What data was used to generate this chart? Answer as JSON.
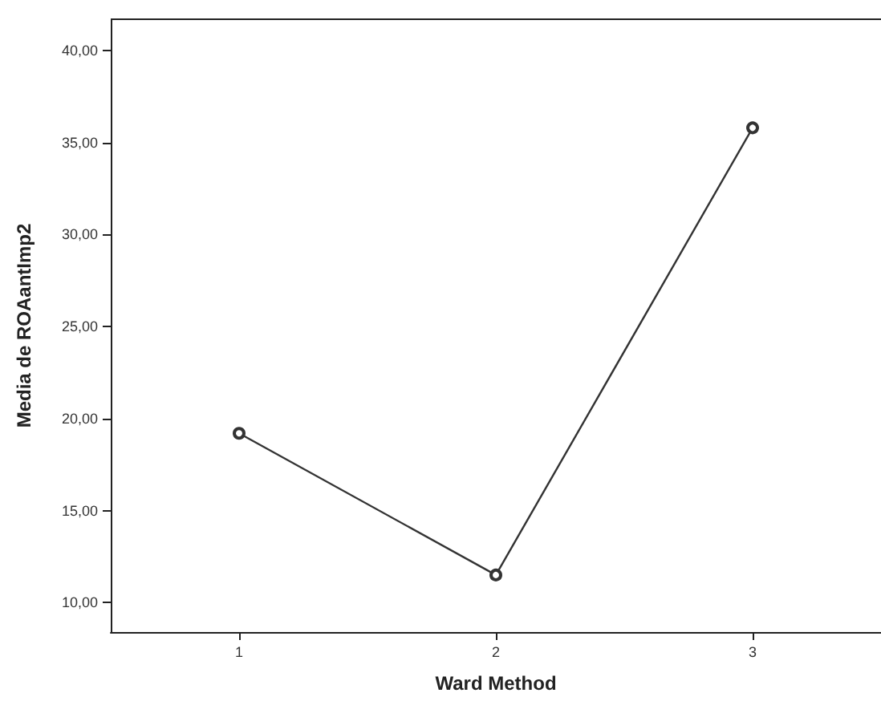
{
  "chart_data": {
    "type": "line",
    "xlabel": "Ward Method",
    "ylabel": "Media de ROAantImp2",
    "categories": [
      "1",
      "2",
      "3"
    ],
    "series": [
      {
        "color": "#333333",
        "values": [
          19.2,
          11.5,
          35.8
        ]
      }
    ],
    "ylim": [
      8.4,
      41.7
    ],
    "yticks": [
      {
        "value": 10,
        "label": "10,00"
      },
      {
        "value": 15,
        "label": "15,00"
      },
      {
        "value": 20,
        "label": "20,00"
      },
      {
        "value": 25,
        "label": "25,00"
      },
      {
        "value": 30,
        "label": "30,00"
      },
      {
        "value": 35,
        "label": "35,00"
      },
      {
        "value": 40,
        "label": "40,00"
      }
    ],
    "grid": false,
    "marker": "circle",
    "line_style": "solid"
  }
}
